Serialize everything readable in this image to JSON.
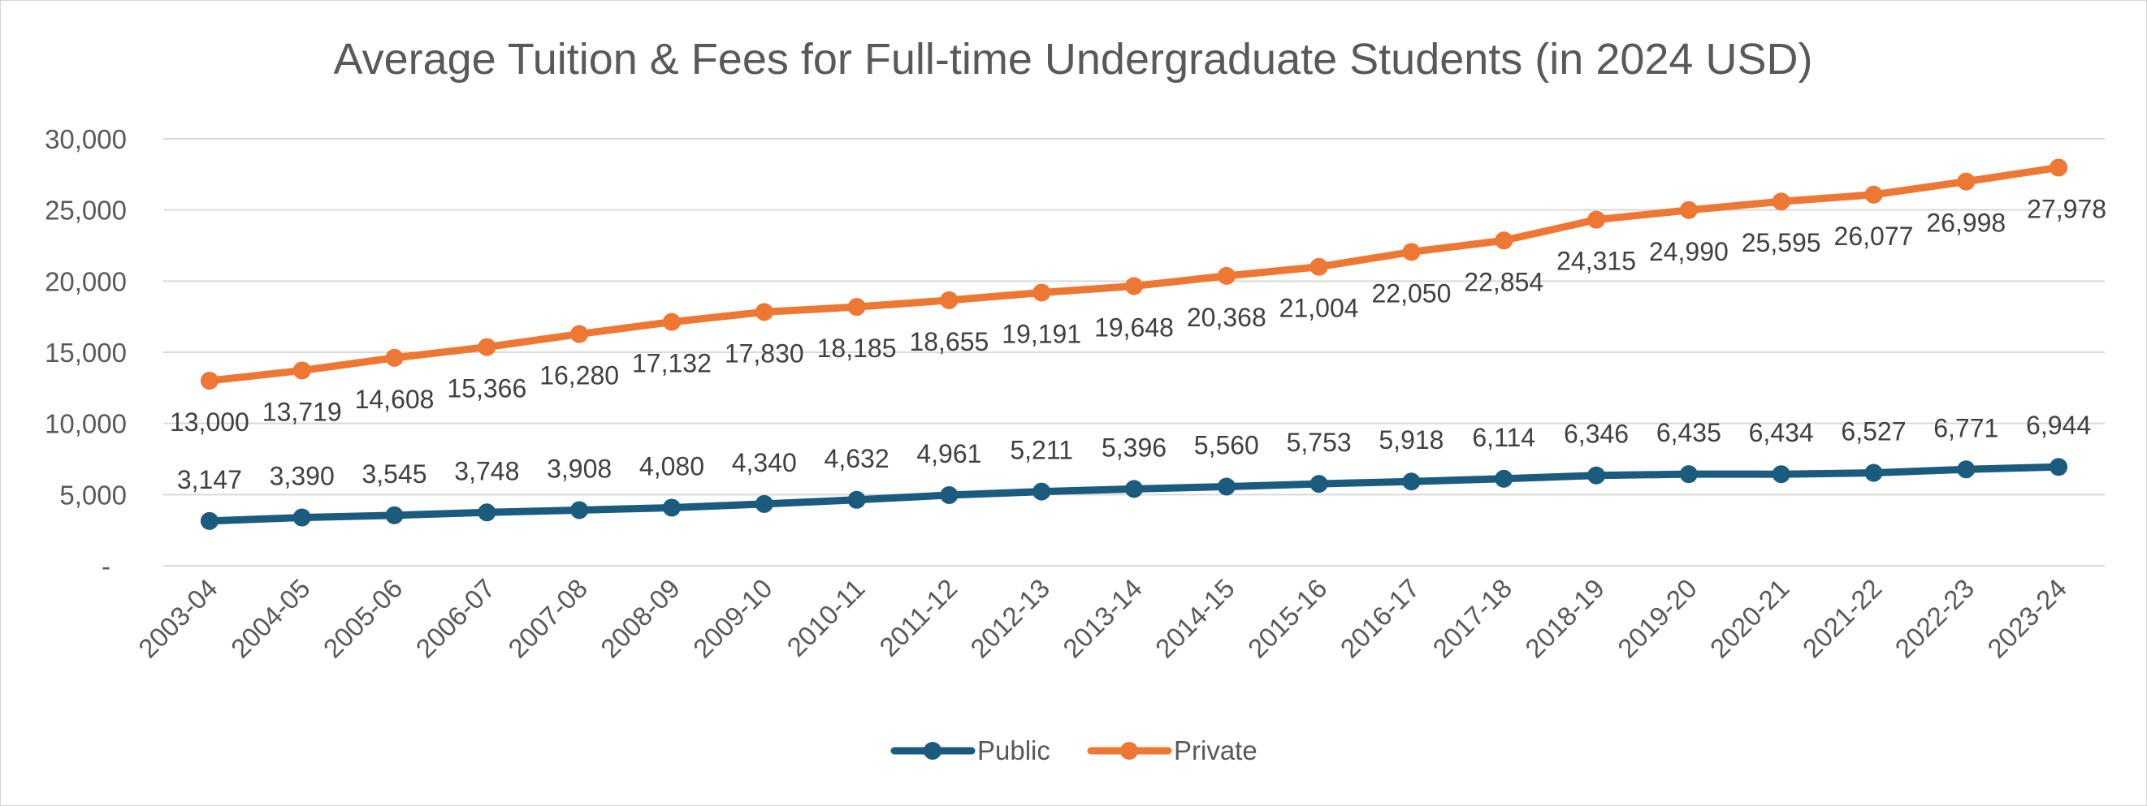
{
  "chart_data": {
    "type": "line",
    "title": "Average Tuition & Fees for Full-time Undergraduate Students (in 2024 USD)",
    "xlabel": "",
    "ylabel": "",
    "ylim": [
      0,
      30000
    ],
    "yticks": [
      {
        "value": 0,
        "label": "-"
      },
      {
        "value": 5000,
        "label": "5,000"
      },
      {
        "value": 10000,
        "label": "10,000"
      },
      {
        "value": 15000,
        "label": "15,000"
      },
      {
        "value": 20000,
        "label": "20,000"
      },
      {
        "value": 25000,
        "label": "25,000"
      },
      {
        "value": 30000,
        "label": "30,000"
      }
    ],
    "grid": true,
    "legend_position": "bottom",
    "categories": [
      "2003-04",
      "2004-05",
      "2005-06",
      "2006-07",
      "2007-08",
      "2008-09",
      "2009-10",
      "2010-11",
      "2011-12",
      "2012-13",
      "2013-14",
      "2014-15",
      "2015-16",
      "2016-17",
      "2017-18",
      "2018-19",
      "2019-20",
      "2020-21",
      "2021-22",
      "2022-23",
      "2023-24"
    ],
    "series": [
      {
        "name": "Public",
        "color": "#1b5b7e",
        "label_position": "above",
        "values": [
          3147,
          3390,
          3545,
          3748,
          3908,
          4080,
          4340,
          4632,
          4961,
          5211,
          5396,
          5560,
          5753,
          5918,
          6114,
          6346,
          6435,
          6434,
          6527,
          6771,
          6944
        ],
        "labels": [
          "3,147",
          "3,390",
          "3,545",
          "3,748",
          "3,908",
          "4,080",
          "4,340",
          "4,632",
          "4,961",
          "5,211",
          "5,396",
          "5,560",
          "5,753",
          "5,918",
          "6,114",
          "6,346",
          "6,435",
          "6,434",
          "6,527",
          "6,771",
          "6,944"
        ]
      },
      {
        "name": "Private",
        "color": "#ed7733",
        "label_position": "below",
        "values": [
          13000,
          13719,
          14608,
          15366,
          16280,
          17132,
          17830,
          18185,
          18655,
          19191,
          19648,
          20368,
          21004,
          22050,
          22854,
          24315,
          24990,
          25595,
          26077,
          26998,
          27978
        ],
        "labels": [
          "13,000",
          "13,719",
          "14,608",
          "15,366",
          "16,280",
          "17,132",
          "17,830",
          "18,185",
          "18,655",
          "19,191",
          "19,648",
          "20,368",
          "21,004",
          "22,050",
          "22,854",
          "24,315",
          "24,990",
          "25,595",
          "26,077",
          "26,998",
          "27,978"
        ]
      }
    ]
  }
}
